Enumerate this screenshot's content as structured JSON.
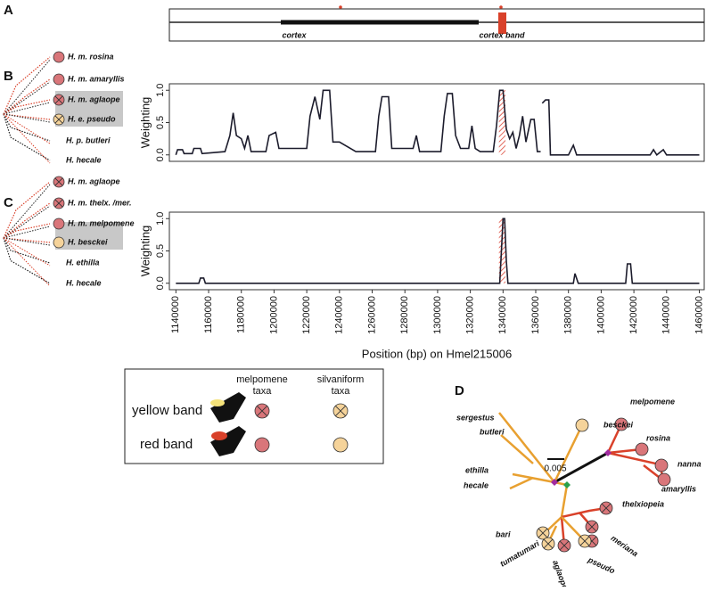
{
  "panel_labels": [
    "A",
    "B",
    "C",
    "D"
  ],
  "gene_map": {
    "labels": [
      "cortex",
      "cortex band"
    ]
  },
  "trees": [
    {
      "taxa": [
        "H. m. rosina",
        "H. m. amaryllis",
        "H. m. aglaope",
        "H. e. pseudo",
        "H. p. butleri",
        "H. hecale"
      ]
    },
    {
      "taxa": [
        "H. m. aglaope",
        "H. m. thelx. /mer.",
        "H. m. melpomene",
        "H. besckei",
        "H. ethilla",
        "H. hecale"
      ]
    }
  ],
  "chart_data": [
    {
      "type": "line",
      "ylabel": "Weighting",
      "color": "#1c1c2c",
      "xlim": [
        1136000,
        1463000
      ],
      "ylim": [
        -0.1,
        1.1
      ],
      "yticks": [
        {
          "value": 0,
          "label": "0.0"
        },
        {
          "value": 0.5,
          "label": "0.5"
        },
        {
          "value": 1,
          "label": "1.0"
        }
      ],
      "highlight": [
        1337500,
        1341500
      ],
      "x": [
        1140000,
        1141000,
        1144000,
        1145000,
        1150000,
        1151000,
        1155000,
        1156000,
        1170000,
        1173000,
        1175000,
        1177000,
        1180000,
        1182000,
        1184000,
        1186000,
        1195000,
        1197000,
        1201000,
        1203000,
        1220000,
        1222000,
        1225000,
        1228000,
        1230000,
        1234000,
        1236000,
        1240000,
        1250000,
        1262000,
        1264000,
        1266000,
        1270000,
        1272000,
        1285000,
        1287000,
        1289000,
        1302000,
        1304000,
        1306000,
        1309000,
        1311000,
        1314000,
        1319000,
        1321000,
        1323000,
        1326000,
        1334000,
        1336000,
        1338000,
        1340000,
        1342000,
        1344000,
        1346000,
        1348000,
        1350000,
        1352000,
        1354000,
        1357000,
        1359000,
        1361000,
        1363000,
        1363500,
        1364000,
        1366000,
        1368000,
        1369000,
        1380000,
        1383000,
        1385000,
        1430000,
        1432000,
        1434000,
        1438000,
        1440000,
        1460000
      ],
      "values": [
        0,
        0.08,
        0.08,
        0.02,
        0.02,
        0.1,
        0.1,
        0.02,
        0.05,
        0.3,
        0.65,
        0.3,
        0.25,
        0.1,
        0.3,
        0.05,
        0.05,
        0.3,
        0.35,
        0.1,
        0.1,
        0.6,
        0.9,
        0.55,
        1.0,
        1.0,
        0.2,
        0.2,
        0.05,
        0.05,
        0.6,
        0.9,
        0.9,
        0.1,
        0.1,
        0.3,
        0.05,
        0.05,
        0.6,
        0.95,
        0.95,
        0.3,
        0.1,
        0.1,
        0.45,
        0.1,
        0.05,
        0.05,
        0.45,
        1.0,
        1.0,
        0.4,
        0.25,
        0.35,
        0.1,
        0.3,
        0.6,
        0.2,
        0.55,
        0.55,
        0.05,
        0.05,
        null,
        0.8,
        0.85,
        0.85,
        0,
        0,
        0.15,
        0,
        0,
        0.08,
        0,
        0.08,
        0,
        0
      ]
    },
    {
      "type": "line",
      "ylabel": "Weighting",
      "xlabel": "Position (bp) on Hmel215006",
      "color": "#1c1c2c",
      "xlim": [
        1136000,
        1463000
      ],
      "ylim": [
        -0.1,
        1.1
      ],
      "yticks": [
        {
          "value": 0,
          "label": "0.0"
        },
        {
          "value": 0.5,
          "label": "0.5"
        },
        {
          "value": 1,
          "label": "1.0"
        }
      ],
      "xticks": [
        1140000,
        1160000,
        1180000,
        1200000,
        1220000,
        1240000,
        1260000,
        1280000,
        1300000,
        1320000,
        1340000,
        1360000,
        1380000,
        1400000,
        1420000,
        1440000,
        1460000
      ],
      "highlight": [
        1337500,
        1341500
      ],
      "x": [
        1140000,
        1154000,
        1155000,
        1157000,
        1158000,
        1338000,
        1339000,
        1340000,
        1341000,
        1342000,
        1343000,
        1383000,
        1384000,
        1386000,
        1415000,
        1416000,
        1418000,
        1419000,
        1460000
      ],
      "values": [
        0,
        0,
        0.08,
        0.08,
        0,
        0,
        0.5,
        1.0,
        1.0,
        0.35,
        0,
        0,
        0.15,
        0,
        0,
        0.3,
        0.3,
        0,
        0
      ]
    }
  ],
  "legend": {
    "columns": [
      [
        "melpomene",
        "taxa"
      ],
      [
        "silvaniform",
        "taxa"
      ]
    ],
    "rows": [
      "yellow band",
      "red band"
    ]
  },
  "tree_d": {
    "scale_label": "0.005",
    "taxa": [
      "sergestus",
      "besckei",
      "butleri",
      "melpomene",
      "rosina",
      "nanna",
      "amaryllis",
      "ethilla",
      "hecale",
      "thelxiopeia",
      "meriana",
      "bari",
      "tumatumari",
      "aglaope",
      "pseudo"
    ]
  }
}
